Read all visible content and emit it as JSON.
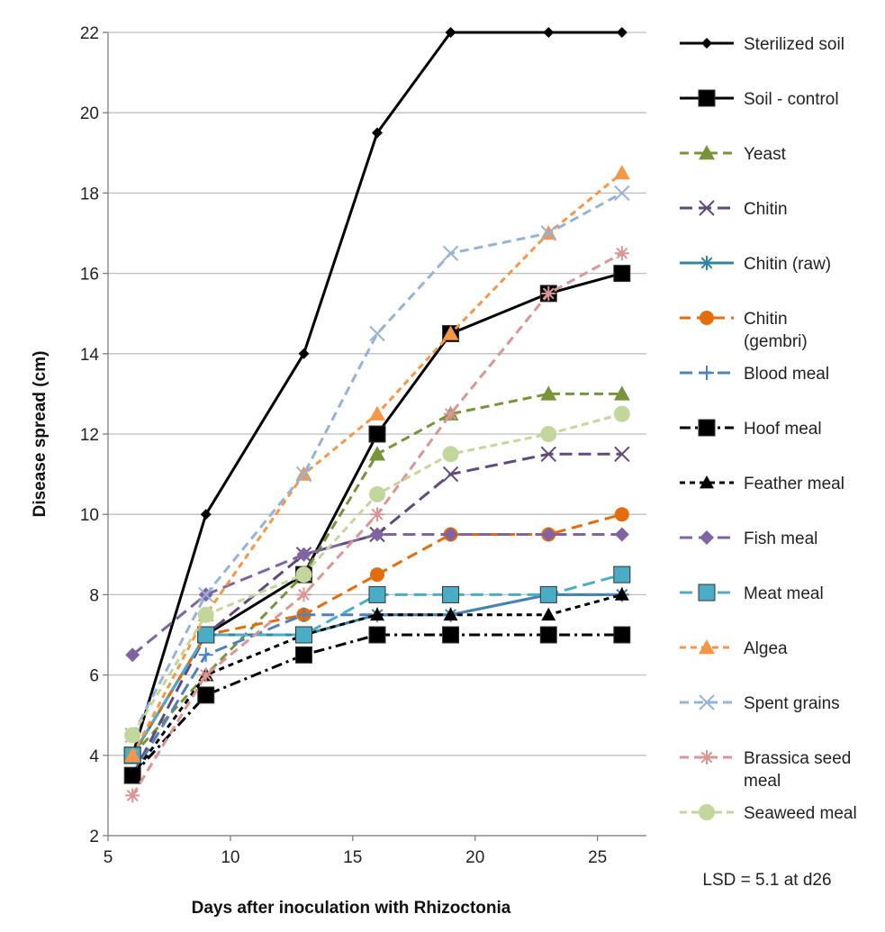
{
  "chart_data": {
    "type": "line",
    "title": "",
    "xlabel": "Days after inoculation with Rhizoctonia",
    "ylabel": "Disease spread (cm)",
    "xlim": [
      5,
      27
    ],
    "ylim": [
      2,
      22
    ],
    "xticks": [
      5,
      10,
      15,
      20,
      25
    ],
    "yticks": [
      2,
      4,
      6,
      8,
      10,
      12,
      14,
      16,
      18,
      20,
      22
    ],
    "grid": "horizontal",
    "legend_position": "right",
    "annotation": "LSD = 5.1 at d26",
    "x": [
      6,
      9,
      13,
      16,
      19,
      23,
      26
    ],
    "series": [
      {
        "name": "Sterilized soil",
        "legend_lines": [
          "Sterilized soil"
        ],
        "values": [
          4,
          10,
          14,
          19.5,
          22,
          22,
          22
        ],
        "color": "#000000",
        "dash": "",
        "width": 3,
        "marker": "diamond",
        "msize": 6
      },
      {
        "name": "Soil - control",
        "legend_lines": [
          "Soil - control"
        ],
        "values": [
          4,
          7,
          8.5,
          12,
          14.5,
          15.5,
          16
        ],
        "color": "#000000",
        "dash": "",
        "width": 3,
        "marker": "square",
        "msize": 9
      },
      {
        "name": "Yeast",
        "legend_lines": [
          "Yeast"
        ],
        "values": [
          4,
          6,
          8.5,
          11.5,
          12.5,
          13,
          13
        ],
        "color": "#77933c",
        "dash": "10,6",
        "width": 3,
        "marker": "triangle",
        "msize": 9
      },
      {
        "name": "Chitin",
        "legend_lines": [
          "Chitin"
        ],
        "values": [
          3.5,
          7,
          9,
          9.5,
          11,
          11.5,
          11.5
        ],
        "color": "#604a7b",
        "dash": "14,7",
        "width": 3,
        "marker": "x",
        "msize": 8
      },
      {
        "name": "Chitin (raw)",
        "legend_lines": [
          "Chitin (raw)"
        ],
        "values": [
          4,
          7,
          7,
          7.5,
          7.5,
          8,
          8
        ],
        "color": "#31859c",
        "dash": "",
        "width": 3,
        "marker": "asterisk",
        "msize": 8
      },
      {
        "name": "Chitin (gembri)",
        "legend_lines": [
          "Chitin",
          "(gembri)"
        ],
        "values": [
          4,
          7,
          7.5,
          8.5,
          9.5,
          9.5,
          10
        ],
        "color": "#e46c0a",
        "dash": "12,7",
        "width": 3,
        "marker": "circle",
        "msize": 8
      },
      {
        "name": "Blood meal",
        "legend_lines": [
          "Blood meal"
        ],
        "values": [
          3.5,
          6.5,
          7.5,
          7.5,
          7.5,
          8,
          8
        ],
        "color": "#4f81bd",
        "dash": "14,7",
        "width": 3,
        "marker": "plus",
        "msize": 8
      },
      {
        "name": "Hoof meal",
        "legend_lines": [
          "Hoof meal"
        ],
        "values": [
          3.5,
          5.5,
          6.5,
          7,
          7,
          7,
          7
        ],
        "color": "#000000",
        "dash": "12,5,3,5",
        "width": 3,
        "marker": "square",
        "msize": 9
      },
      {
        "name": "Feather meal",
        "legend_lines": [
          "Feather meal"
        ],
        "values": [
          3.5,
          6,
          7,
          7.5,
          7.5,
          7.5,
          8
        ],
        "color": "#000000",
        "dash": "6,5",
        "width": 3,
        "marker": "triangle",
        "msize": 8
      },
      {
        "name": "Fish meal",
        "legend_lines": [
          "Fish meal"
        ],
        "values": [
          6.5,
          8,
          9,
          9.5,
          9.5,
          9.5,
          9.5
        ],
        "color": "#8064a2",
        "dash": "14,7",
        "width": 3,
        "marker": "diamond",
        "msize": 8
      },
      {
        "name": "Meat meal",
        "legend_lines": [
          "Meat meal"
        ],
        "values": [
          4,
          7,
          7,
          8,
          8,
          8,
          8.5
        ],
        "color": "#4bacc6",
        "dash": "14,7",
        "width": 3,
        "marker": "square",
        "msize": 9
      },
      {
        "name": "Algea",
        "legend_lines": [
          "Algea"
        ],
        "values": [
          4,
          7.5,
          11,
          12.5,
          14.5,
          17,
          18.5
        ],
        "color": "#f79646",
        "dash": "7,5",
        "width": 3,
        "marker": "triangle",
        "msize": 9
      },
      {
        "name": "Spent grains",
        "legend_lines": [
          "Spent grains"
        ],
        "values": [
          4.5,
          8,
          11,
          14.5,
          16.5,
          17,
          18
        ],
        "color": "#95b3d7",
        "dash": "10,6",
        "width": 3,
        "marker": "x",
        "msize": 8
      },
      {
        "name": "Brassica seed meal",
        "legend_lines": [
          "Brassica seed",
          "meal"
        ],
        "values": [
          3,
          6,
          8,
          10,
          12.5,
          15.5,
          16.5
        ],
        "color": "#d99694",
        "dash": "10,6",
        "width": 3,
        "marker": "asterisk",
        "msize": 8
      },
      {
        "name": "Seaweed meal",
        "legend_lines": [
          "Seaweed meal"
        ],
        "values": [
          4.5,
          7.5,
          8.5,
          10.5,
          11.5,
          12,
          12.5
        ],
        "color": "#c3d69b",
        "dash": "8,5",
        "width": 3,
        "marker": "circle",
        "msize": 9
      }
    ]
  }
}
